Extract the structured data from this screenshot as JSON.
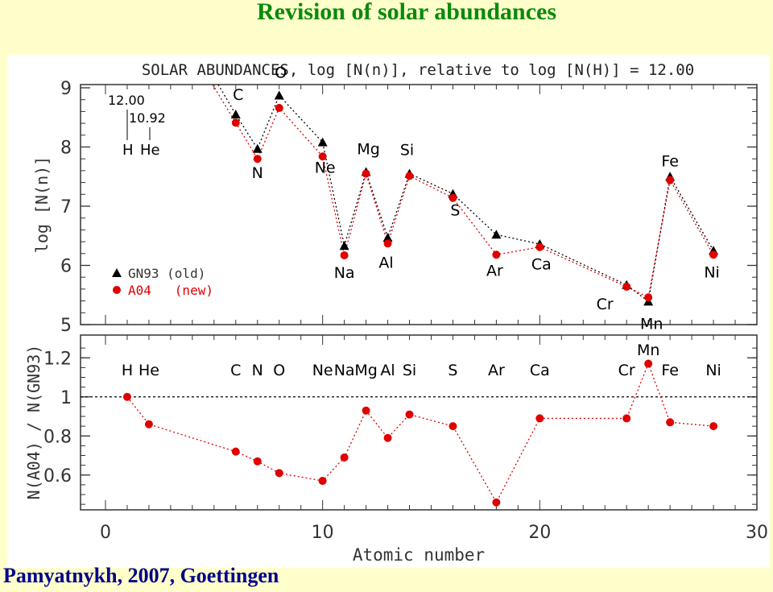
{
  "slide": {
    "title": "Revision of solar abundances",
    "footer": "Pamyatnykh, 2007, Goettingen"
  },
  "colors": {
    "title": "#0a8a0a",
    "footer": "#00008b",
    "old": "#000000",
    "new": "#e00000",
    "background": "#ffffcc"
  },
  "chart_data": [
    {
      "type": "line",
      "title": "SOLAR ABUNDANCES, log [N(n)], relative to log [N(H)] = 12.00",
      "xlabel": "",
      "ylabel": "log [N(n)]",
      "xlim": [
        0,
        30
      ],
      "ylim": [
        5,
        9
      ],
      "x_ticks": [
        "0",
        "10",
        "20",
        "30"
      ],
      "y_ticks": [
        "5",
        "6",
        "7",
        "8",
        "9"
      ],
      "inset": {
        "h_value": "12.00",
        "he_value": "10.92",
        "h_label": "H",
        "he_label": "He"
      },
      "legend": {
        "position": "lower-left",
        "entries": [
          "GN93 (old)",
          "A04   (new)"
        ]
      },
      "element_labels": [
        {
          "text": "C",
          "x": 6
        },
        {
          "text": "N",
          "x": 7
        },
        {
          "text": "O",
          "x": 8
        },
        {
          "text": "Ne",
          "x": 10
        },
        {
          "text": "Na",
          "x": 11
        },
        {
          "text": "Mg",
          "x": 12
        },
        {
          "text": "Al",
          "x": 13
        },
        {
          "text": "Si",
          "x": 14
        },
        {
          "text": "S",
          "x": 16
        },
        {
          "text": "Ar",
          "x": 18
        },
        {
          "text": "Ca",
          "x": 20
        },
        {
          "text": "Cr",
          "x": 24
        },
        {
          "text": "Mn",
          "x": 25
        },
        {
          "text": "Fe",
          "x": 26
        },
        {
          "text": "Ni",
          "x": 28
        }
      ],
      "series": [
        {
          "name": "GN93 (old)",
          "marker": "triangle",
          "x": [
            6,
            7,
            8,
            10,
            11,
            12,
            13,
            14,
            16,
            18,
            20,
            24,
            25,
            26,
            28
          ],
          "y": [
            8.55,
            7.97,
            8.87,
            8.08,
            6.33,
            7.58,
            6.47,
            7.55,
            7.21,
            6.52,
            6.36,
            5.67,
            5.39,
            7.5,
            6.25
          ]
        },
        {
          "name": "A04 (new)",
          "marker": "circle",
          "x": [
            6,
            7,
            8,
            10,
            11,
            12,
            13,
            14,
            16,
            18,
            20,
            24,
            25,
            26,
            28
          ],
          "y": [
            8.41,
            7.8,
            8.66,
            7.84,
            6.17,
            7.55,
            6.37,
            7.51,
            7.14,
            6.18,
            6.31,
            5.64,
            5.46,
            7.44,
            6.18
          ]
        }
      ]
    },
    {
      "type": "line",
      "xlabel": "Atomic number",
      "ylabel": "N(A04) / N(GN93)",
      "xlim": [
        0,
        30
      ],
      "ylim": [
        0.43,
        1.3
      ],
      "x_ticks": [
        "0",
        "10",
        "20",
        "30"
      ],
      "y_ticks": [
        "0.6",
        "0.8",
        "1",
        "1.2"
      ],
      "reference_line": 1,
      "element_labels": [
        {
          "text": "H",
          "x": 1
        },
        {
          "text": "He",
          "x": 2
        },
        {
          "text": "C",
          "x": 6
        },
        {
          "text": "N",
          "x": 7
        },
        {
          "text": "O",
          "x": 8
        },
        {
          "text": "Ne",
          "x": 10
        },
        {
          "text": "Na",
          "x": 11
        },
        {
          "text": "Mg",
          "x": 12
        },
        {
          "text": "Al",
          "x": 13
        },
        {
          "text": "Si",
          "x": 14
        },
        {
          "text": "S",
          "x": 16
        },
        {
          "text": "Ar",
          "x": 18
        },
        {
          "text": "Ca",
          "x": 20
        },
        {
          "text": "Cr",
          "x": 24
        },
        {
          "text": "Mn",
          "x": 25
        },
        {
          "text": "Fe",
          "x": 26
        },
        {
          "text": "Ni",
          "x": 28
        }
      ],
      "series": [
        {
          "name": "A04 (new)",
          "marker": "circle",
          "x": [
            1,
            2,
            6,
            7,
            8,
            10,
            11,
            12,
            13,
            14,
            16,
            18,
            20,
            24,
            25,
            26,
            28
          ],
          "y": [
            1.0,
            0.86,
            0.72,
            0.67,
            0.61,
            0.57,
            0.69,
            0.93,
            0.79,
            0.91,
            0.85,
            0.46,
            0.89,
            0.89,
            1.17,
            0.87,
            0.85
          ]
        }
      ]
    }
  ]
}
